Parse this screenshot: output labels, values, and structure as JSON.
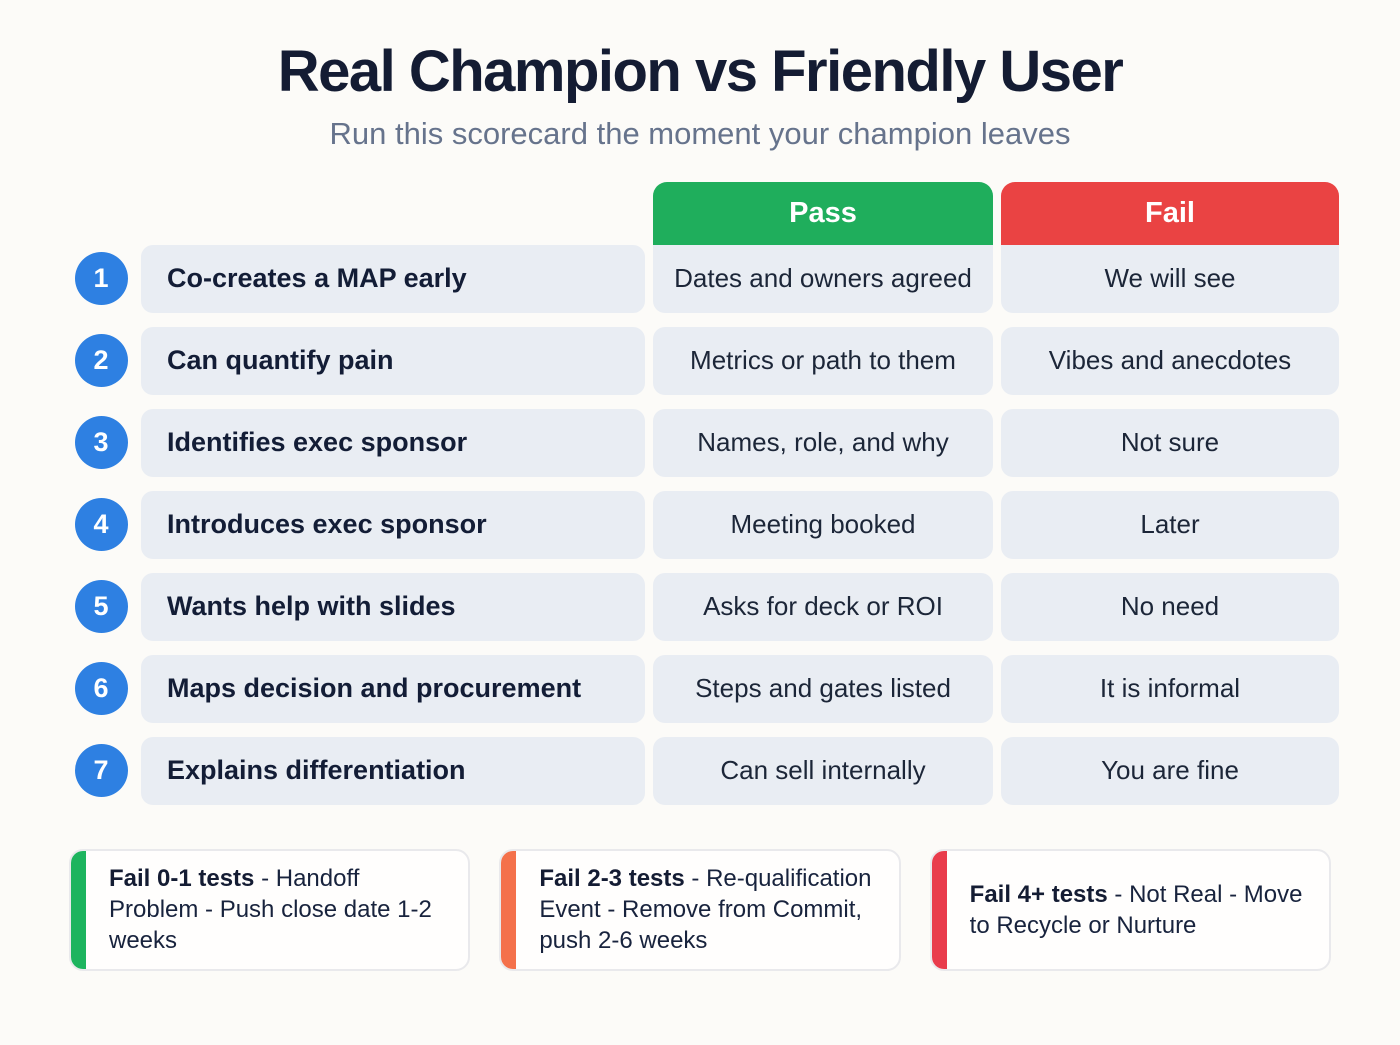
{
  "header": {
    "title": "Real Champion vs Friendly User",
    "subtitle": "Run this scorecard the moment your champion leaves"
  },
  "table": {
    "columns": {
      "pass": "Pass",
      "fail": "Fail"
    },
    "rows": [
      {
        "num": "1",
        "criterion": "Co-creates a MAP early",
        "pass": "Dates and owners agreed",
        "fail": "We will see"
      },
      {
        "num": "2",
        "criterion": "Can quantify pain",
        "pass": "Metrics or path to them",
        "fail": "Vibes and anecdotes"
      },
      {
        "num": "3",
        "criterion": "Identifies exec sponsor",
        "pass": "Names, role, and why",
        "fail": "Not sure"
      },
      {
        "num": "4",
        "criterion": "Introduces exec sponsor",
        "pass": "Meeting booked",
        "fail": "Later"
      },
      {
        "num": "5",
        "criterion": "Wants help with slides",
        "pass": "Asks for deck or ROI",
        "fail": "No need"
      },
      {
        "num": "6",
        "criterion": "Maps decision and procurement",
        "pass": "Steps and gates listed",
        "fail": "It is informal"
      },
      {
        "num": "7",
        "criterion": "Explains differentiation",
        "pass": "Can sell internally",
        "fail": "You are fine"
      }
    ]
  },
  "legend": [
    {
      "lead": "Fail 0-1 tests",
      "rest": " - Handoff Problem - Push close date 1-2 weeks",
      "color": "#1db45e"
    },
    {
      "lead": "Fail 2-3 tests",
      "rest": " - Re-qualification Event - Remove from Commit, push 2-6 weeks",
      "color": "#f4714b"
    },
    {
      "lead": "Fail 4+ tests",
      "rest": " - Not Real - Move to Recycle or Nurture",
      "color": "#e93c4c"
    }
  ],
  "colors": {
    "page_bg": "#fcfbf8",
    "title": "#141c33",
    "subtitle": "#66738c",
    "pass_header": "#1fae5c",
    "fail_header": "#ea4343",
    "row_cell_bg": "#e9edf3",
    "number_badge": "#2e80e2"
  }
}
